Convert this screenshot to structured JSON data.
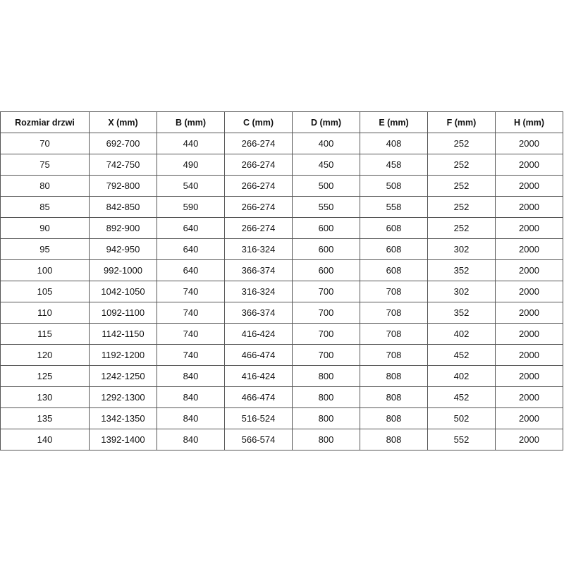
{
  "table": {
    "header": [
      "Rozmiar drzwi",
      "X (mm)",
      "B (mm)",
      "C (mm)",
      "D (mm)",
      "E (mm)",
      "F (mm)",
      "H (mm)"
    ],
    "rows": [
      [
        "70",
        "692-700",
        "440",
        "266-274",
        "400",
        "408",
        "252",
        "2000"
      ],
      [
        "75",
        "742-750",
        "490",
        "266-274",
        "450",
        "458",
        "252",
        "2000"
      ],
      [
        "80",
        "792-800",
        "540",
        "266-274",
        "500",
        "508",
        "252",
        "2000"
      ],
      [
        "85",
        "842-850",
        "590",
        "266-274",
        "550",
        "558",
        "252",
        "2000"
      ],
      [
        "90",
        "892-900",
        "640",
        "266-274",
        "600",
        "608",
        "252",
        "2000"
      ],
      [
        "95",
        "942-950",
        "640",
        "316-324",
        "600",
        "608",
        "302",
        "2000"
      ],
      [
        "100",
        "992-1000",
        "640",
        "366-374",
        "600",
        "608",
        "352",
        "2000"
      ],
      [
        "105",
        "1042-1050",
        "740",
        "316-324",
        "700",
        "708",
        "302",
        "2000"
      ],
      [
        "110",
        "1092-1100",
        "740",
        "366-374",
        "700",
        "708",
        "352",
        "2000"
      ],
      [
        "115",
        "1142-1150",
        "740",
        "416-424",
        "700",
        "708",
        "402",
        "2000"
      ],
      [
        "120",
        "1192-1200",
        "740",
        "466-474",
        "700",
        "708",
        "452",
        "2000"
      ],
      [
        "125",
        "1242-1250",
        "840",
        "416-424",
        "800",
        "808",
        "402",
        "2000"
      ],
      [
        "130",
        "1292-1300",
        "840",
        "466-474",
        "800",
        "808",
        "452",
        "2000"
      ],
      [
        "135",
        "1342-1350",
        "840",
        "516-524",
        "800",
        "808",
        "502",
        "2000"
      ],
      [
        "140",
        "1392-1400",
        "840",
        "566-574",
        "800",
        "808",
        "552",
        "2000"
      ]
    ]
  }
}
